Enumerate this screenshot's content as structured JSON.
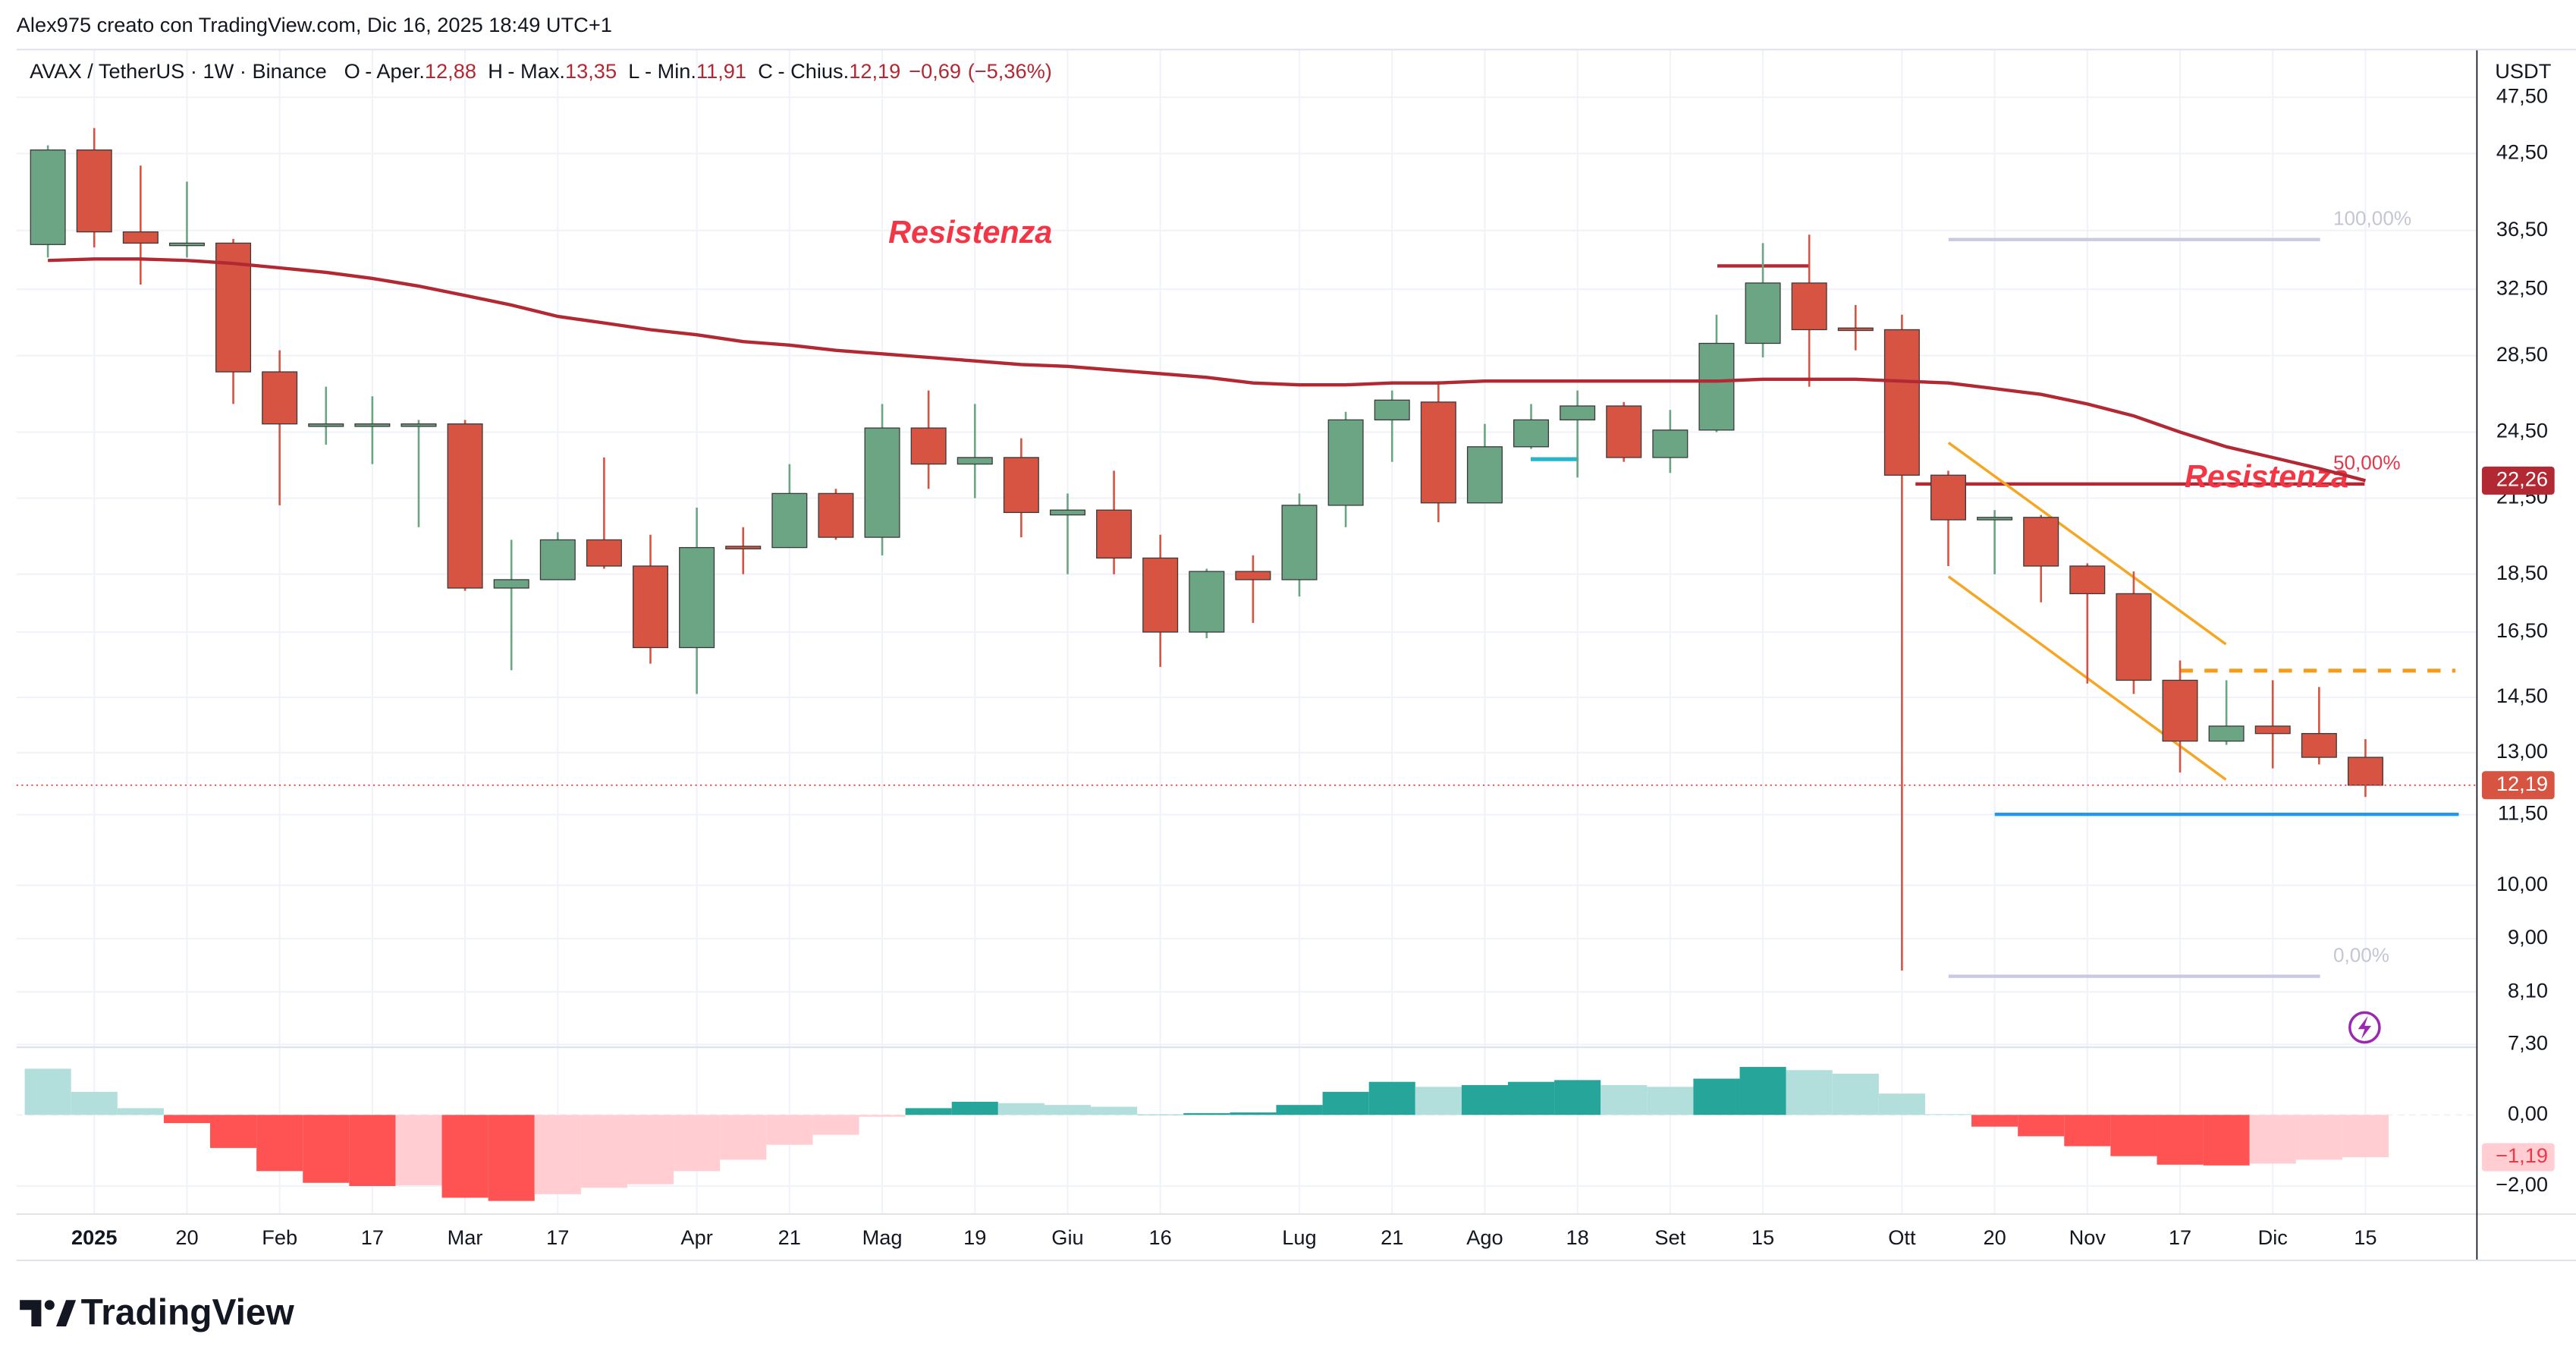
{
  "header": {
    "credit": "Alex975 creato con TradingView.com, Dic 16, 2025 18:49 UTC+1",
    "symbol": "AVAX / TetherUS · 1W · Binance",
    "ohlc": [
      {
        "key": "O",
        "name": "- Aper.",
        "value": "12,88"
      },
      {
        "key": "H",
        "name": "- Max.",
        "value": "13,35"
      },
      {
        "key": "L",
        "name": "- Min.",
        "value": "11,91"
      },
      {
        "key": "C",
        "name": "- Chius.",
        "value": "12,19"
      }
    ],
    "change": "−0,69",
    "change_pct": "(−5,36%)"
  },
  "chart_data": [
    {
      "type": "candlestick",
      "currency": "USDT",
      "log_scale": true,
      "grid": true,
      "up_color": "#6ba583",
      "down_color": "#d75442",
      "categories": [
        null,
        "2025",
        null,
        "20",
        null,
        "Feb",
        null,
        "17",
        null,
        "Mar",
        null,
        "17",
        null,
        null,
        "Apr",
        null,
        "21",
        null,
        "Mag",
        null,
        "19",
        null,
        "Giu",
        null,
        "16",
        null,
        null,
        "Lug",
        null,
        "21",
        null,
        "Ago",
        null,
        "18",
        null,
        "Set",
        null,
        "15",
        null,
        null,
        "Ott",
        null,
        "20",
        null,
        "Nov",
        null,
        "17",
        null,
        "Dic",
        null,
        "15"
      ],
      "open": [
        35.5,
        42.8,
        36.4,
        35.6,
        35.6,
        27.6,
        24.9,
        24.9,
        24.9,
        24.9,
        18.0,
        18.3,
        19.8,
        18.8,
        16.0,
        19.55,
        19.5,
        21.7,
        19.9,
        24.7,
        23.0,
        23.3,
        20.8,
        21.0,
        19.1,
        16.5,
        18.6,
        18.3,
        21.2,
        25.1,
        26.0,
        21.3,
        23.8,
        25.1,
        25.8,
        23.3,
        24.6,
        29.2,
        32.9,
        30.1,
        30.0,
        22.5,
        20.6,
        20.7,
        18.8,
        17.8,
        15.0,
        13.3,
        13.7,
        13.5,
        12.88
      ],
      "high": [
        43.2,
        44.7,
        41.5,
        40.2,
        35.9,
        28.8,
        26.8,
        26.3,
        25.1,
        25.1,
        19.8,
        20.1,
        23.3,
        20.0,
        21.1,
        20.3,
        23.0,
        21.9,
        25.9,
        26.6,
        25.9,
        24.2,
        21.7,
        22.7,
        20.0,
        18.7,
        19.2,
        21.7,
        25.5,
        26.6,
        27.1,
        24.9,
        25.9,
        26.6,
        26.0,
        25.6,
        30.9,
        35.6,
        36.2,
        31.5,
        30.9,
        22.7,
        21.0,
        20.8,
        18.9,
        18.6,
        15.6,
        15.0,
        15.0,
        14.8,
        13.35
      ],
      "low": [
        34.6,
        35.3,
        32.8,
        34.6,
        25.9,
        21.2,
        23.9,
        23.0,
        20.3,
        17.9,
        15.3,
        18.3,
        18.7,
        15.5,
        14.6,
        18.5,
        19.5,
        19.8,
        19.2,
        21.9,
        21.5,
        19.9,
        18.5,
        18.5,
        15.4,
        16.3,
        16.8,
        17.7,
        20.3,
        23.1,
        20.5,
        21.3,
        23.7,
        22.4,
        23.1,
        22.6,
        24.5,
        28.4,
        26.8,
        28.8,
        8.45,
        18.8,
        18.5,
        17.5,
        14.9,
        14.6,
        12.5,
        13.2,
        12.6,
        12.7,
        11.91
      ],
      "close": [
        42.8,
        36.4,
        35.6,
        35.6,
        27.6,
        24.9,
        24.9,
        24.9,
        24.9,
        18.0,
        18.3,
        19.8,
        18.8,
        16.0,
        19.5,
        19.45,
        21.7,
        19.9,
        24.7,
        23.0,
        23.3,
        20.9,
        21.0,
        19.1,
        16.5,
        18.6,
        18.3,
        21.2,
        25.1,
        26.1,
        21.3,
        23.8,
        25.1,
        25.8,
        23.3,
        24.6,
        29.2,
        32.9,
        30.0,
        30.0,
        22.5,
        20.6,
        20.7,
        18.8,
        17.8,
        15.0,
        13.3,
        13.7,
        13.5,
        12.88,
        12.19
      ],
      "close_value_labels": [
        null,
        null,
        null,
        null,
        null,
        null,
        null,
        null,
        null,
        null,
        null,
        null,
        null,
        null,
        null,
        null,
        null,
        null,
        null,
        null,
        null,
        null,
        null,
        null,
        null,
        null,
        null,
        null,
        null,
        null,
        null,
        null,
        null,
        null,
        null,
        null,
        null,
        null,
        null,
        null,
        null,
        null,
        null,
        null,
        null,
        null,
        null,
        null,
        null,
        null,
        "12,19"
      ],
      "ma": {
        "color": "#b22833",
        "values": [
          34.4,
          34.5,
          34.5,
          34.4,
          34.2,
          33.9,
          33.6,
          33.2,
          32.7,
          32.1,
          31.5,
          30.8,
          30.4,
          30.0,
          29.7,
          29.3,
          29.1,
          28.8,
          28.6,
          28.4,
          28.2,
          28.0,
          27.9,
          27.7,
          27.5,
          27.3,
          27.0,
          26.9,
          26.9,
          27.0,
          27.0,
          27.1,
          27.1,
          27.1,
          27.1,
          27.1,
          27.1,
          27.2,
          27.2,
          27.2,
          27.1,
          27.0,
          26.7,
          26.4,
          25.9,
          25.3,
          24.5,
          23.8,
          23.3,
          22.8,
          22.26
        ],
        "value_labels": [
          null,
          null,
          null,
          null,
          null,
          null,
          null,
          null,
          null,
          null,
          null,
          null,
          null,
          null,
          null,
          null,
          null,
          null,
          null,
          null,
          null,
          null,
          null,
          null,
          null,
          null,
          null,
          null,
          null,
          null,
          null,
          null,
          null,
          null,
          null,
          null,
          null,
          null,
          null,
          null,
          null,
          null,
          null,
          null,
          null,
          null,
          null,
          null,
          null,
          null,
          "22,26"
        ]
      },
      "ylim": [
        7.26,
        52.2
      ],
      "yticks": [
        {
          "value": 47.5,
          "label": "47,50"
        },
        {
          "value": 42.5,
          "label": "42,50"
        },
        {
          "value": 36.5,
          "label": "36,50"
        },
        {
          "value": 32.5,
          "label": "32,50"
        },
        {
          "value": 28.5,
          "label": "28,50"
        },
        {
          "value": 24.5,
          "label": "24,50"
        },
        {
          "value": 21.5,
          "label": "21,50"
        },
        {
          "value": 18.5,
          "label": "18,50"
        },
        {
          "value": 16.5,
          "label": "16,50"
        },
        {
          "value": 14.5,
          "label": "14,50"
        },
        {
          "value": 13,
          "label": "13,00"
        },
        {
          "value": 11.5,
          "label": "11,50"
        },
        {
          "value": 10,
          "label": "10,00"
        },
        {
          "value": 9,
          "label": "9,00"
        },
        {
          "value": 8.1,
          "label": "8,10"
        },
        {
          "value": 7.3,
          "label": "7,30"
        }
      ],
      "annotations": [
        "Resistenza",
        "Resistenza",
        "100,00%",
        "50,00%",
        "0,00%"
      ]
    },
    {
      "type": "histogram",
      "grid": true,
      "values": [
        1.3,
        0.65,
        0.19,
        -0.23,
        -0.93,
        -1.58,
        -1.91,
        -2.0,
        -1.98,
        -2.33,
        -2.42,
        -2.23,
        -2.05,
        -1.95,
        -1.58,
        -1.26,
        -0.84,
        -0.56,
        -0.05,
        0.19,
        0.37,
        0.33,
        0.28,
        0.23,
        0.01,
        0.05,
        0.07,
        0.28,
        0.65,
        0.93,
        0.79,
        0.84,
        0.93,
        0.98,
        0.84,
        0.79,
        1.02,
        1.35,
        1.26,
        1.16,
        0.6,
        0.02,
        -0.33,
        -0.6,
        -0.88,
        -1.16,
        -1.4,
        -1.42,
        -1.37,
        -1.26,
        -1.19
      ],
      "colors": [
        "#b2dfdb",
        "#b2dfdb",
        "#b2dfdb",
        "#ff5252",
        "#ff5252",
        "#ff5252",
        "#ff5252",
        "#ff5252",
        "#ffcdd2",
        "#ff5252",
        "#ff5252",
        "#ffcdd2",
        "#ffcdd2",
        "#ffcdd2",
        "#ffcdd2",
        "#ffcdd2",
        "#ffcdd2",
        "#ffcdd2",
        "#ffcdd2",
        "#26a69a",
        "#26a69a",
        "#b2dfdb",
        "#b2dfdb",
        "#b2dfdb",
        "#26a69a",
        "#26a69a",
        "#26a69a",
        "#26a69a",
        "#26a69a",
        "#26a69a",
        "#b2dfdb",
        "#26a69a",
        "#26a69a",
        "#26a69a",
        "#b2dfdb",
        "#b2dfdb",
        "#26a69a",
        "#26a69a",
        "#b2dfdb",
        "#b2dfdb",
        "#b2dfdb",
        "#b2dfdb",
        "#ff5252",
        "#ff5252",
        "#ff5252",
        "#ff5252",
        "#ff5252",
        "#ff5252",
        "#ffcdd2",
        "#ffcdd2",
        "#ffcdd2"
      ],
      "value_labels": [
        null,
        null,
        null,
        null,
        null,
        null,
        null,
        null,
        null,
        null,
        null,
        null,
        null,
        null,
        null,
        null,
        null,
        null,
        null,
        null,
        null,
        null,
        null,
        null,
        null,
        null,
        null,
        null,
        null,
        null,
        null,
        null,
        null,
        null,
        null,
        null,
        null,
        null,
        null,
        null,
        null,
        null,
        null,
        null,
        null,
        null,
        null,
        null,
        null,
        null,
        "−1,19"
      ],
      "ylim": [
        -2.79,
        1.81
      ],
      "yticks": [
        {
          "value": 0,
          "label": "0,00"
        },
        {
          "value": -2,
          "label": "−2,00"
        }
      ]
    }
  ],
  "footer": {
    "brand": "TradingView"
  }
}
